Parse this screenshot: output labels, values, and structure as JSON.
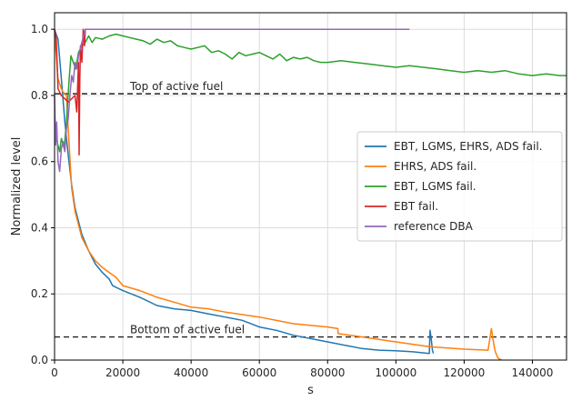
{
  "chart_data": {
    "type": "line",
    "xlabel": "s",
    "ylabel": "Normalized level",
    "xlim": [
      0,
      150000
    ],
    "ylim": [
      0.0,
      1.05
    ],
    "xticks": [
      0,
      20000,
      40000,
      60000,
      80000,
      100000,
      120000,
      140000
    ],
    "yticks": [
      0.0,
      0.2,
      0.4,
      0.6,
      0.8,
      1.0
    ],
    "grid": true,
    "legend_position": "center-right",
    "reference_lines": [
      {
        "label": "Top of active fuel",
        "y": 0.805
      },
      {
        "label": "Bottom of active fuel",
        "y": 0.07
      }
    ],
    "series": [
      {
        "name": "EBT, LGMS, EHRS, ADS fail.",
        "color": "#1f77b4",
        "x": [
          0,
          300,
          1000,
          2000,
          3000,
          4000,
          5000,
          6000,
          8000,
          10000,
          12000,
          14000,
          16000,
          17000,
          20000,
          25000,
          30000,
          35000,
          40000,
          45000,
          50000,
          55000,
          60000,
          65000,
          70000,
          80000,
          90000,
          95000,
          100000,
          105000,
          109800,
          110000,
          110400,
          110700,
          111000
        ],
        "y": [
          1.0,
          0.99,
          0.97,
          0.85,
          0.72,
          0.62,
          0.53,
          0.46,
          0.38,
          0.33,
          0.29,
          0.265,
          0.245,
          0.225,
          0.21,
          0.19,
          0.165,
          0.155,
          0.15,
          0.14,
          0.13,
          0.12,
          0.1,
          0.09,
          0.075,
          0.055,
          0.035,
          0.03,
          0.028,
          0.025,
          0.02,
          0.09,
          0.06,
          0.03,
          0.02
        ]
      },
      {
        "name": "EHRS, ADS fail.",
        "color": "#ff7f0e",
        "x": [
          0,
          300,
          1000,
          2000,
          2500,
          3500,
          4000,
          5000,
          6000,
          8000,
          10000,
          12000,
          14000,
          16000,
          18000,
          20000,
          25000,
          30000,
          35000,
          40000,
          45000,
          50000,
          60000,
          70000,
          80000,
          83000,
          83100,
          90000,
          100000,
          110000,
          120000,
          127000,
          128000,
          128500,
          129000,
          129500,
          130000,
          131000
        ],
        "y": [
          1.0,
          0.95,
          0.85,
          0.82,
          0.81,
          0.8,
          0.7,
          0.52,
          0.45,
          0.37,
          0.33,
          0.3,
          0.28,
          0.265,
          0.25,
          0.225,
          0.21,
          0.19,
          0.175,
          0.16,
          0.155,
          0.145,
          0.13,
          0.11,
          0.1,
          0.095,
          0.08,
          0.07,
          0.055,
          0.04,
          0.033,
          0.03,
          0.095,
          0.06,
          0.03,
          0.015,
          0.005,
          0.0
        ]
      },
      {
        "name": "EBT, LGMS fail.",
        "color": "#2ca02c",
        "x": [
          0,
          1500,
          2000,
          2800,
          3500,
          4200,
          4800,
          5500,
          6200,
          7000,
          8000,
          9000,
          10000,
          11000,
          12000,
          14000,
          16000,
          18000,
          20000,
          22000,
          24000,
          26000,
          28000,
          30000,
          32000,
          34000,
          36000,
          38000,
          40000,
          42000,
          44000,
          46000,
          48000,
          50000,
          52000,
          54000,
          56000,
          58000,
          60000,
          62000,
          64000,
          66000,
          68000,
          70000,
          72000,
          74000,
          76000,
          78000,
          80000,
          84000,
          88000,
          92000,
          96000,
          100000,
          104000,
          108000,
          112000,
          116000,
          120000,
          124000,
          128000,
          132000,
          136000,
          140000,
          144000,
          148000,
          150000
        ],
        "y": [
          0.69,
          0.63,
          0.67,
          0.64,
          0.72,
          0.84,
          0.92,
          0.9,
          0.88,
          0.93,
          0.95,
          0.96,
          0.98,
          0.96,
          0.975,
          0.97,
          0.98,
          0.985,
          0.98,
          0.975,
          0.97,
          0.965,
          0.955,
          0.97,
          0.96,
          0.965,
          0.95,
          0.945,
          0.94,
          0.945,
          0.95,
          0.93,
          0.935,
          0.925,
          0.91,
          0.93,
          0.92,
          0.925,
          0.93,
          0.92,
          0.91,
          0.925,
          0.905,
          0.915,
          0.91,
          0.915,
          0.905,
          0.9,
          0.9,
          0.905,
          0.9,
          0.895,
          0.89,
          0.885,
          0.89,
          0.885,
          0.88,
          0.875,
          0.87,
          0.875,
          0.87,
          0.875,
          0.865,
          0.86,
          0.865,
          0.86,
          0.86
        ]
      },
      {
        "name": "EBT fail.",
        "color": "#d62728",
        "x": [
          0,
          500,
          1000,
          2000,
          3000,
          4000,
          5000,
          6000,
          6500,
          7000,
          7200,
          7400,
          7600,
          8000,
          8400,
          8800,
          9000,
          10000,
          12000
        ],
        "y": [
          1.0,
          0.97,
          0.82,
          0.8,
          0.79,
          0.78,
          0.79,
          0.8,
          0.75,
          0.9,
          0.62,
          0.85,
          0.95,
          0.9,
          1.0,
          0.95,
          1.0,
          1.0,
          1.0
        ]
      },
      {
        "name": "reference DBA",
        "color": "#9467bd",
        "x": [
          0,
          300,
          600,
          1000,
          1500,
          2000,
          2500,
          3000,
          3500,
          4000,
          4500,
          5000,
          5500,
          6000,
          6500,
          7000,
          7500,
          8000,
          8500,
          9000,
          10000,
          20000,
          40000,
          60000,
          80000,
          100000,
          104000
        ],
        "y": [
          0.8,
          0.65,
          0.72,
          0.6,
          0.57,
          0.64,
          0.66,
          0.63,
          0.7,
          0.73,
          0.8,
          0.86,
          0.84,
          0.9,
          0.88,
          0.92,
          0.94,
          0.96,
          0.98,
          1.0,
          1.0,
          1.0,
          1.0,
          1.0,
          1.0,
          1.0,
          1.0
        ]
      }
    ]
  }
}
